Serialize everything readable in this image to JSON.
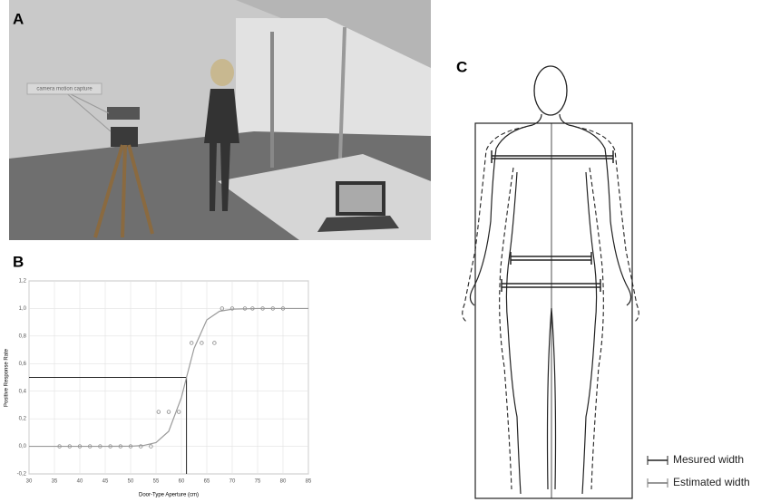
{
  "panel_labels": [
    "A",
    "B",
    "C"
  ],
  "scene": {
    "annotation": "camera motion capture"
  },
  "chart_data": {
    "type": "scatter",
    "x_label": "Door-Type Aperture (cm)",
    "y_label": "Positive Response Rate",
    "xlim": [
      30,
      85
    ],
    "ylim": [
      -0.2,
      1.2
    ],
    "xticks": [
      30,
      35,
      40,
      45,
      50,
      55,
      60,
      65,
      70,
      75,
      80,
      85
    ],
    "yticks": [
      {
        "value": -0.2,
        "label": "-0,2"
      },
      {
        "value": 0,
        "label": "0,0"
      },
      {
        "value": 0.2,
        "label": "0,2"
      },
      {
        "value": 0.4,
        "label": "0,4"
      },
      {
        "value": 0.6,
        "label": "0,6"
      },
      {
        "value": 0.8,
        "label": "0,8"
      },
      {
        "value": 1,
        "label": "1,0"
      },
      {
        "value": 1.2,
        "label": "1,2"
      }
    ],
    "grid": true,
    "series": [
      {
        "color": "#8a8a8a",
        "mode": "points",
        "x": [
          36,
          38,
          40,
          42,
          44,
          46,
          48,
          50,
          52,
          54,
          55.5,
          57.5,
          59.5,
          62,
          64,
          66.5,
          68,
          70,
          72.5,
          74,
          76,
          78,
          80
        ],
        "values": [
          0,
          0,
          0,
          0,
          0,
          0,
          0,
          0,
          0,
          0,
          0.25,
          0.25,
          0.25,
          0.75,
          0.75,
          0.75,
          1,
          1,
          1,
          1,
          1,
          1,
          1
        ]
      },
      {
        "color": "#9a9a9a",
        "mode": "line",
        "x": [
          30,
          35,
          40,
          45,
          50,
          52.5,
          55,
          57.5,
          60,
          61,
          62.5,
          65,
          67.5,
          70,
          75,
          80,
          85
        ],
        "values": [
          0,
          0,
          0,
          0,
          0.001,
          0.006,
          0.027,
          0.109,
          0.354,
          0.5,
          0.711,
          0.917,
          0.98,
          0.995,
          1,
          1,
          1
        ]
      }
    ],
    "threshold": {
      "x": 61,
      "y": 0.5
    }
  },
  "body_diagram": {
    "legend": [
      "Mesured width",
      "Estimated width"
    ]
  }
}
